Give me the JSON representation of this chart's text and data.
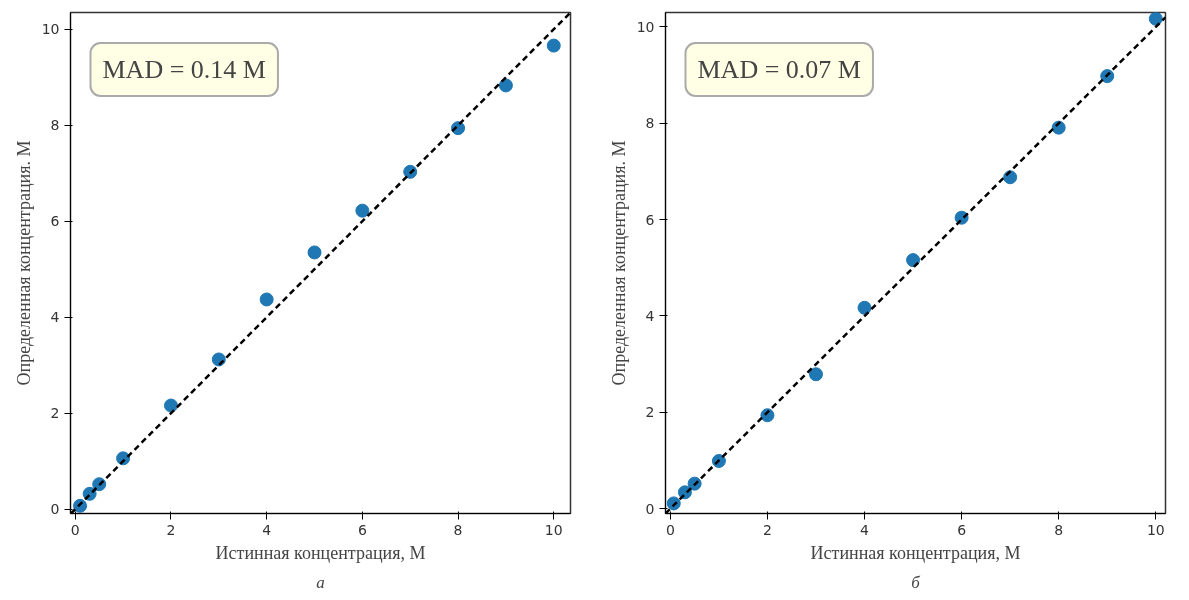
{
  "chart_data": [
    {
      "type": "scatter",
      "title": "а",
      "xlabel": "Истинная концентрация, М",
      "ylabel": "Определенная концентрация. М",
      "annotations": [
        "MAD = 0.14 M"
      ],
      "xlim": [
        -0.1,
        10.35
      ],
      "ylim": [
        -0.09,
        10.35
      ],
      "xticks": [
        0,
        2,
        4,
        6,
        8,
        10
      ],
      "yticks": [
        0,
        2,
        4,
        6,
        8,
        10
      ],
      "grid": false,
      "series": [
        {
          "marker": "circle",
          "color": "#1f77b4",
          "x": [
            0.1,
            0.3,
            0.5,
            1,
            2,
            3,
            4,
            5,
            6,
            7,
            8,
            9,
            10
          ],
          "values": [
            0.07,
            0.32,
            0.52,
            1.06,
            2.16,
            3.12,
            4.37,
            5.35,
            6.22,
            7.03,
            7.94,
            8.83,
            9.66
          ]
        },
        {
          "type": "line",
          "color": "#000000",
          "line_style": "dashed",
          "x": [
            -0.09,
            10.35
          ],
          "values": [
            -0.09,
            10.35
          ]
        }
      ]
    },
    {
      "type": "scatter",
      "title": "б",
      "xlabel": "Истинная концентрация, М",
      "ylabel": "Определенная концентрация. М",
      "annotations": [
        "MAD = 0.07 M"
      ],
      "xlim": [
        -0.1,
        10.2
      ],
      "ylim": [
        -0.1,
        10.3
      ],
      "xticks": [
        0,
        2,
        4,
        6,
        8,
        10
      ],
      "yticks": [
        0,
        2,
        4,
        6,
        8,
        10
      ],
      "grid": false,
      "series": [
        {
          "marker": "circle",
          "color": "#1f77b4",
          "x": [
            0.07,
            0.3,
            0.5,
            1,
            2,
            3,
            4,
            5,
            6,
            7,
            8,
            9,
            10
          ],
          "values": [
            0.11,
            0.34,
            0.52,
            0.99,
            1.94,
            2.79,
            4.17,
            5.16,
            6.04,
            6.88,
            7.91,
            8.98,
            10.17
          ]
        },
        {
          "type": "line",
          "color": "#000000",
          "line_style": "dashed",
          "x": [
            -0.1,
            10.2
          ],
          "values": [
            -0.1,
            10.2
          ]
        }
      ]
    }
  ]
}
